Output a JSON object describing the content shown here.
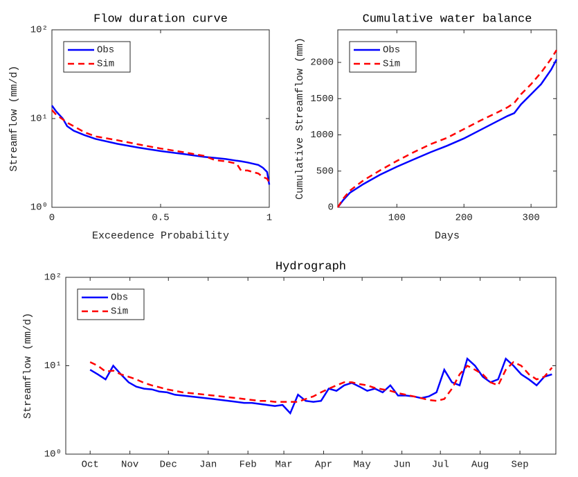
{
  "chart_data": [
    {
      "type": "line",
      "title": "Flow duration curve",
      "x_label": "Exceedence Probability",
      "y_label": "Streamflow (mm/d)",
      "x": [
        0,
        0.02,
        0.05,
        0.07,
        0.1,
        0.15,
        0.2,
        0.3,
        0.4,
        0.5,
        0.6,
        0.7,
        0.75,
        0.8,
        0.85,
        0.87,
        0.9,
        0.95,
        0.97,
        0.99,
        1
      ],
      "series": [
        {
          "name": "Obs",
          "color": "#0000ff",
          "dash": "solid",
          "values": [
            14,
            12,
            10,
            8.2,
            7.3,
            6.5,
            5.9,
            5.2,
            4.7,
            4.3,
            4.0,
            3.7,
            3.6,
            3.5,
            3.35,
            3.3,
            3.2,
            3.0,
            2.8,
            2.5,
            1.8
          ]
        },
        {
          "name": "Sim",
          "color": "#ff0000",
          "dash": "dashed",
          "values": [
            12.5,
            11,
            9.8,
            9,
            8.2,
            7,
            6.3,
            5.7,
            5.1,
            4.6,
            4.2,
            3.8,
            3.4,
            3.3,
            3.1,
            2.6,
            2.6,
            2.4,
            2.2,
            2.1,
            1.9
          ]
        }
      ],
      "xlim": [
        0,
        1
      ],
      "xticks": [
        0,
        0.5,
        1
      ],
      "y_scale": "log",
      "ylim": [
        1,
        100
      ],
      "yticks": [
        {
          "value": 1,
          "label": "10⁰"
        },
        {
          "value": 10,
          "label": "10¹"
        },
        {
          "value": 100,
          "label": "10²"
        }
      ],
      "legend": "upper left"
    },
    {
      "type": "line",
      "title": "Cumulative water balance",
      "x_label": "Days",
      "y_label": "Cumulative Streamflow (mm)",
      "x": [
        12,
        20,
        30,
        50,
        75,
        100,
        125,
        150,
        175,
        200,
        225,
        250,
        265,
        275,
        285,
        300,
        315,
        330,
        338
      ],
      "series": [
        {
          "name": "Obs",
          "color": "#0000ff",
          "dash": "solid",
          "values": [
            0,
            100,
            200,
            320,
            450,
            560,
            660,
            760,
            850,
            950,
            1070,
            1190,
            1260,
            1300,
            1420,
            1560,
            1700,
            1900,
            2040
          ]
        },
        {
          "name": "Sim",
          "color": "#ff0000",
          "dash": "dashed",
          "values": [
            0,
            120,
            230,
            370,
            510,
            640,
            760,
            870,
            960,
            1080,
            1200,
            1310,
            1380,
            1440,
            1560,
            1700,
            1860,
            2050,
            2170
          ]
        }
      ],
      "xlim": [
        12,
        338
      ],
      "xticks": [
        100,
        200,
        300
      ],
      "y_scale": "linear",
      "ylim": [
        0,
        2450
      ],
      "yticks": [
        0,
        500,
        1000,
        1500,
        2000
      ],
      "legend": "upper left"
    },
    {
      "type": "line",
      "title": "Hydrograph",
      "y_label": "Streamflow (mm/d)",
      "x": [
        0,
        6,
        12,
        18,
        24,
        30,
        36,
        42,
        48,
        54,
        60,
        66,
        72,
        78,
        84,
        90,
        96,
        102,
        108,
        114,
        120,
        126,
        132,
        138,
        144,
        150,
        156,
        162,
        168,
        174,
        180,
        186,
        192,
        198,
        204,
        210,
        216,
        222,
        228,
        234,
        240,
        246,
        252,
        258,
        264,
        270,
        276,
        282,
        288,
        294,
        300,
        306,
        312,
        318,
        324,
        330,
        336,
        342,
        348,
        354,
        360
      ],
      "series": [
        {
          "name": "Obs",
          "color": "#0000ff",
          "dash": "solid",
          "values": [
            9,
            8,
            7,
            10,
            8,
            6.5,
            5.8,
            5.5,
            5.4,
            5.1,
            5.0,
            4.7,
            4.6,
            4.5,
            4.4,
            4.3,
            4.2,
            4.1,
            4.0,
            3.9,
            3.8,
            3.8,
            3.7,
            3.6,
            3.5,
            3.6,
            2.9,
            4.7,
            4.0,
            3.9,
            4.0,
            5.5,
            5.2,
            6.0,
            6.4,
            5.8,
            5.2,
            5.5,
            5.0,
            6.0,
            4.6,
            4.6,
            4.5,
            4.3,
            4.5,
            5.0,
            9.0,
            6.5,
            6.0,
            12,
            10,
            7.5,
            6.5,
            7.0,
            12,
            10,
            8.0,
            7.0,
            6.0,
            7.5,
            8.0
          ]
        },
        {
          "name": "Sim",
          "color": "#ff0000",
          "dash": "dashed",
          "values": [
            11,
            10,
            8.6,
            8.8,
            8.0,
            7.5,
            7.0,
            6.4,
            6.0,
            5.7,
            5.4,
            5.2,
            5.0,
            4.9,
            4.8,
            4.7,
            4.6,
            4.5,
            4.4,
            4.3,
            4.2,
            4.1,
            4.0,
            4.0,
            3.9,
            3.9,
            3.9,
            3.9,
            4.2,
            4.5,
            5.0,
            5.5,
            6.0,
            6.5,
            6.5,
            6.2,
            6.0,
            5.6,
            5.4,
            5.2,
            4.9,
            4.7,
            4.5,
            4.3,
            4.1,
            4.0,
            4.2,
            5.5,
            8.0,
            10,
            9.0,
            8.0,
            6.5,
            6.0,
            9.0,
            11,
            10,
            8.0,
            7.0,
            7.5,
            9.5
          ]
        }
      ],
      "xlim": [
        -19,
        363
      ],
      "xticks": [
        {
          "value": 0,
          "label": "Oct"
        },
        {
          "value": 31,
          "label": "Nov"
        },
        {
          "value": 61,
          "label": "Dec"
        },
        {
          "value": 92,
          "label": "Jan"
        },
        {
          "value": 123,
          "label": "Feb"
        },
        {
          "value": 151,
          "label": "Mar"
        },
        {
          "value": 182,
          "label": "Apr"
        },
        {
          "value": 212,
          "label": "May"
        },
        {
          "value": 243,
          "label": "Jun"
        },
        {
          "value": 273,
          "label": "Jul"
        },
        {
          "value": 304,
          "label": "Aug"
        },
        {
          "value": 335,
          "label": "Sep"
        }
      ],
      "y_scale": "log",
      "ylim": [
        1,
        100
      ],
      "yticks": [
        {
          "value": 1,
          "label": "10⁰"
        },
        {
          "value": 10,
          "label": "10¹"
        },
        {
          "value": 100,
          "label": "10²"
        }
      ],
      "legend": "upper left"
    }
  ]
}
